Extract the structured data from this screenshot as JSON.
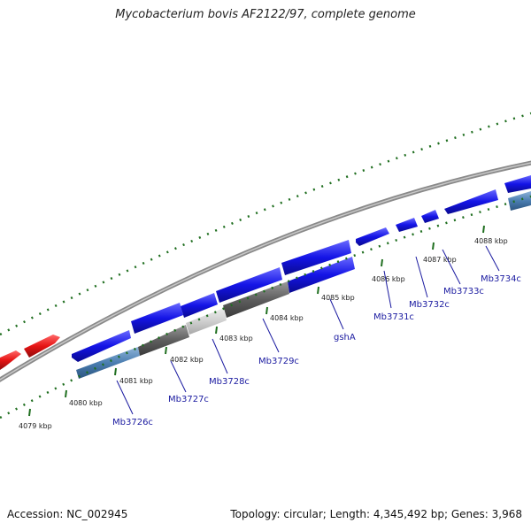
{
  "title": "Mycobacterium bovis AF2122/97, complete genome",
  "footer": {
    "accession": "Accession: NC_002945",
    "stats": "Topology: circular; Length: 4,345,492 bp; Genes: 3,968"
  },
  "colors": {
    "forward_gene": "#1414e6",
    "reverse_gene": "#1414e6",
    "rna_gene": "#e61414",
    "backbone": "#888888",
    "tick": "#1f6e1f",
    "label": "#1a1aa0"
  },
  "ticks": [
    "4079 kbp",
    "4080 kbp",
    "4081 kbp",
    "4082 kbp",
    "4083 kbp",
    "4084 kbp",
    "4085 kbp",
    "4086 kbp",
    "4087 kbp",
    "4088 kbp"
  ],
  "genes": [
    "Mb3726c",
    "Mb3727c",
    "Mb3728c",
    "Mb3729c",
    "gshA",
    "Mb3731c",
    "Mb3732c",
    "Mb3733c",
    "Mb3734c"
  ]
}
